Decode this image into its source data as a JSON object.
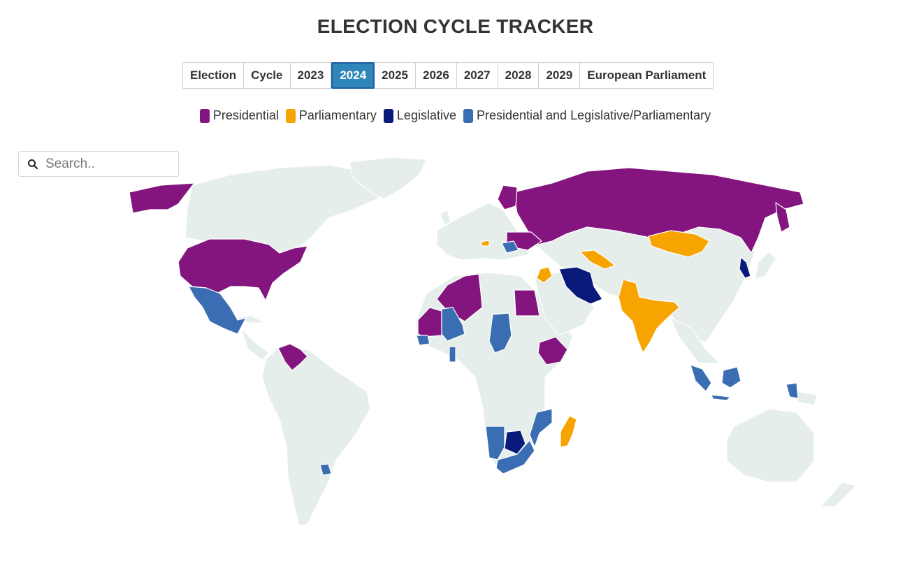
{
  "header": {
    "title": "ELECTION CYCLE TRACKER"
  },
  "tabs": [
    {
      "label": "Election",
      "active": false
    },
    {
      "label": "Cycle",
      "active": false
    },
    {
      "label": "2023",
      "active": false
    },
    {
      "label": "2024",
      "active": true
    },
    {
      "label": "2025",
      "active": false
    },
    {
      "label": "2026",
      "active": false
    },
    {
      "label": "2027",
      "active": false
    },
    {
      "label": "2028",
      "active": false
    },
    {
      "label": "2029",
      "active": false
    },
    {
      "label": "European Parliament",
      "active": false
    }
  ],
  "legend": [
    {
      "label": "Presidential",
      "color": "#84157f"
    },
    {
      "label": "Parliamentary",
      "color": "#f7a400"
    },
    {
      "label": "Legislative",
      "color": "#0a1a7a"
    },
    {
      "label": "Presidential and Legislative/Parliamentary",
      "color": "#3a6db2"
    }
  ],
  "search": {
    "placeholder": "Search..",
    "icon": "search-icon"
  },
  "map": {
    "base_color": "#e6eeeb",
    "highlighted": [
      {
        "country": "United States",
        "type": "Presidential"
      },
      {
        "country": "Russia",
        "type": "Presidential"
      },
      {
        "country": "Venezuela",
        "type": "Presidential"
      },
      {
        "country": "Algeria",
        "type": "Presidential"
      },
      {
        "country": "Egypt",
        "type": "Presidential"
      },
      {
        "country": "Ethiopia",
        "type": "Presidential"
      },
      {
        "country": "Mauritania",
        "type": "Presidential"
      },
      {
        "country": "Belarus",
        "type": "Presidential"
      },
      {
        "country": "Finland",
        "type": "Presidential"
      },
      {
        "country": "India",
        "type": "Parliamentary"
      },
      {
        "country": "Mongolia",
        "type": "Parliamentary"
      },
      {
        "country": "Uzbekistan",
        "type": "Parliamentary"
      },
      {
        "country": "Madagascar",
        "type": "Parliamentary"
      },
      {
        "country": "Syria",
        "type": "Parliamentary"
      },
      {
        "country": "Iran",
        "type": "Legislative"
      },
      {
        "country": "South Korea",
        "type": "Legislative"
      },
      {
        "country": "Botswana",
        "type": "Legislative"
      },
      {
        "country": "Mexico",
        "type": "Presidential and Legislative/Parliamentary"
      },
      {
        "country": "Indonesia",
        "type": "Presidential and Legislative/Parliamentary"
      },
      {
        "country": "South Africa",
        "type": "Presidential and Legislative/Parliamentary"
      },
      {
        "country": "Namibia",
        "type": "Presidential and Legislative/Parliamentary"
      },
      {
        "country": "Mozambique",
        "type": "Presidential and Legislative/Parliamentary"
      },
      {
        "country": "Chad",
        "type": "Presidential and Legislative/Parliamentary"
      },
      {
        "country": "Mali",
        "type": "Presidential and Legislative/Parliamentary"
      },
      {
        "country": "Senegal",
        "type": "Presidential and Legislative/Parliamentary"
      },
      {
        "country": "Uruguay",
        "type": "Presidential and Legislative/Parliamentary"
      },
      {
        "country": "Romania",
        "type": "Presidential and Legislative/Parliamentary"
      }
    ]
  }
}
